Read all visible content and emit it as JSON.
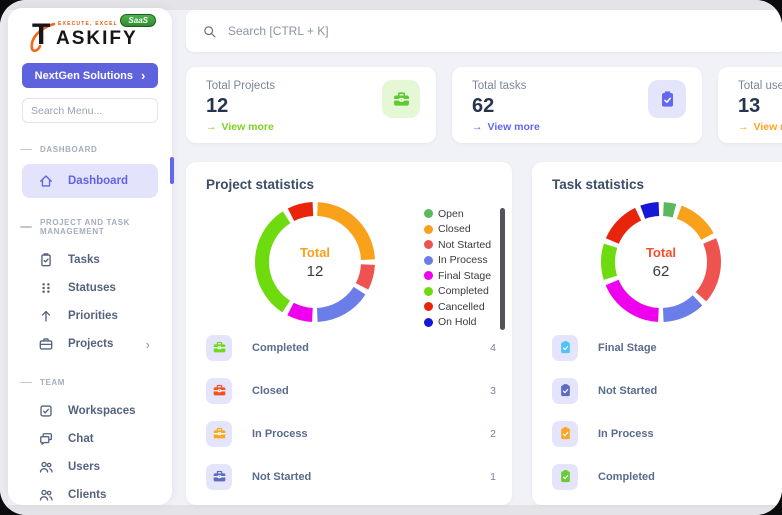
{
  "logo": {
    "title_initial": "T",
    "title_rest": "ASKIFY",
    "tagline": "EXECUTE, EXCEL",
    "badge": "SaaS"
  },
  "sidebar": {
    "company_button": {
      "label": "NextGen Solutions",
      "chevron": "›"
    },
    "menu_search_placeholder": "Search Menu...",
    "sections": [
      {
        "label": "DASHBOARD",
        "items": [
          {
            "label": "Dashboard",
            "icon": "home",
            "active": true
          }
        ]
      },
      {
        "label": "PROJECT AND TASK MANAGEMENT",
        "items": [
          {
            "label": "Tasks",
            "icon": "clipboard"
          },
          {
            "label": "Statuses",
            "icon": "grid"
          },
          {
            "label": "Priorities",
            "icon": "arrow-up"
          },
          {
            "label": "Projects",
            "icon": "briefcase",
            "chevron": "›"
          }
        ]
      },
      {
        "label": "TEAM",
        "items": [
          {
            "label": "Workspaces",
            "icon": "checkbox"
          },
          {
            "label": "Chat",
            "icon": "chat"
          },
          {
            "label": "Users",
            "icon": "users"
          },
          {
            "label": "Clients",
            "icon": "users"
          }
        ]
      }
    ]
  },
  "topbar": {
    "search_placeholder": "Search [CTRL + K]"
  },
  "stat_cards": [
    {
      "label": "Total Projects",
      "value": "12",
      "icon": "briefcase-filled",
      "icon_color": "#5ccb2f",
      "icon_bg": "#e4f8d6",
      "link_label": "View more",
      "link_arrow": "→",
      "link_color": "#7ed321"
    },
    {
      "label": "Total tasks",
      "value": "62",
      "icon": "clipboard-filled",
      "icon_color": "#6366f1",
      "icon_bg": "#e4e4fb",
      "link_label": "View more",
      "link_arrow": "→",
      "link_color": "#6366f1"
    },
    {
      "label": "Total users",
      "value": "13",
      "icon": "users-filled",
      "icon_color": "#f5a623",
      "icon_bg": "#fdf0d5",
      "link_label": "View more",
      "link_arrow": "→",
      "link_color": "#f5a623"
    }
  ],
  "chart_data": [
    {
      "type": "pie",
      "title": "Project statistics",
      "center_label": "Total",
      "center_label_color": "#f9a11b",
      "total": "12",
      "labels": [
        "Open",
        "Closed",
        "Not Started",
        "In Process",
        "Final Stage",
        "Completed",
        "Cancelled",
        "On Hold"
      ],
      "colors": [
        "#5cb85c",
        "#f9a11b",
        "#ef5350",
        "#6b7de8",
        "#ee00ee",
        "#6ddb0e",
        "#e8250c",
        "#1717d6"
      ],
      "values": [
        0,
        3,
        1,
        2,
        1,
        4,
        1,
        0
      ],
      "show_legend": true,
      "legend_position": "right",
      "list_icon": "briefcase-filled",
      "list": [
        {
          "label": "Completed",
          "count": "4",
          "color": "#6fd821"
        },
        {
          "label": "Closed",
          "count": "3",
          "color": "#f4511e"
        },
        {
          "label": "In Process",
          "count": "2",
          "color": "#f9a825"
        },
        {
          "label": "Not Started",
          "count": "1",
          "color": "#5c6bc0"
        }
      ]
    },
    {
      "type": "pie",
      "title": "Task statistics",
      "center_label": "Total",
      "center_label_color": "#f4502e",
      "total": "62",
      "labels": [
        "Open",
        "Closed",
        "Not Started",
        "In Process",
        "Final Stage",
        "Completed",
        "Cancelled",
        "On Hold"
      ],
      "colors": [
        "#5cb85c",
        "#f9a11b",
        "#ef5350",
        "#6b7de8",
        "#ee00ee",
        "#6ddb0e",
        "#e8250c",
        "#1717d6"
      ],
      "values": [
        3,
        8,
        12,
        8,
        12,
        7,
        8,
        4
      ],
      "show_legend": false,
      "list_icon": "clipboard-filled",
      "list": [
        {
          "label": "Final Stage",
          "color": "#4fc3f7"
        },
        {
          "label": "Not Started",
          "color": "#5c6bc0"
        },
        {
          "label": "In Process",
          "color": "#f9a825"
        },
        {
          "label": "Completed",
          "color": "#66cc33"
        }
      ]
    }
  ]
}
